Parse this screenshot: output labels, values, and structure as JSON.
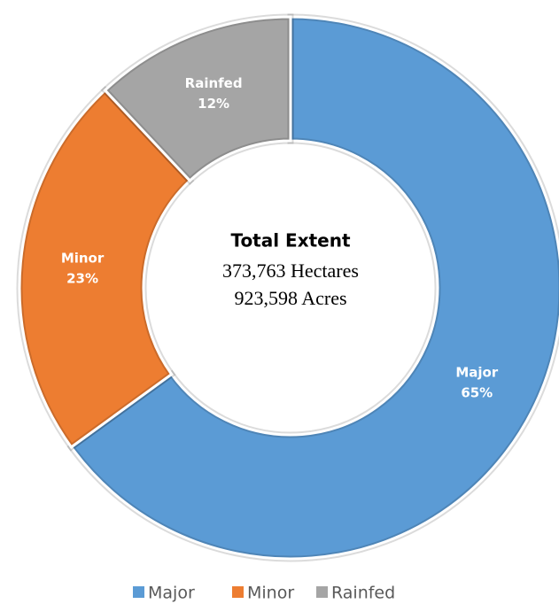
{
  "chart_data": {
    "type": "donut",
    "categories": [
      "Major",
      "Minor",
      "Rainfed"
    ],
    "values": [
      65,
      23,
      12
    ],
    "value_labels": [
      "65%",
      "23%",
      "12%"
    ],
    "colors": [
      "#5b9bd5",
      "#ed7d31",
      "#a5a5a5"
    ],
    "center_title": "Total Extent",
    "annotations": [
      "373,763 Hectares",
      "923,598 Acres"
    ],
    "legend": "bottom"
  }
}
